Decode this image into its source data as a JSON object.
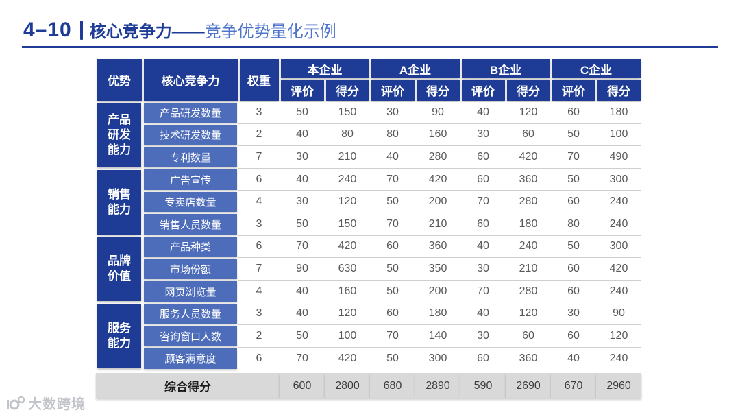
{
  "slide": {
    "number": "4–10",
    "title_main": "核心竞争力——",
    "title_sub": "竞争优势量化示例"
  },
  "watermark": {
    "brand": "大数跨境"
  },
  "colors": {
    "dark_blue": "#1e3c96",
    "mid_blue": "#4d6dba",
    "title_light_blue": "#4f74cc",
    "footer_gray": "#d9d9d9",
    "data_text_gray": "#595959",
    "row_line_gray": "#cfcfcf"
  },
  "chart_data": {
    "type": "table",
    "title": "核心竞争力——竞争优势量化示例",
    "header": {
      "advantage": "优势",
      "core_competitiveness": "核心竞争力",
      "weight": "权重",
      "companies": [
        "本企业",
        "A企业",
        "B企业",
        "C企业"
      ],
      "subheaders": [
        "评价",
        "得分"
      ]
    },
    "value_columns": [
      "本企业 评价",
      "本企业 得分",
      "A企业 评价",
      "A企业 得分",
      "B企业 评价",
      "B企业 得分",
      "C企业 评价",
      "C企业 得分"
    ],
    "groups": [
      {
        "advantage": "产品\n研发\n能力",
        "rows": [
          {
            "label": "产品研发数量",
            "weight": 3,
            "values": [
              50,
              150,
              30,
              90,
              40,
              120,
              60,
              180
            ]
          },
          {
            "label": "技术研发数量",
            "weight": 2,
            "values": [
              40,
              80,
              80,
              160,
              30,
              60,
              50,
              100
            ]
          },
          {
            "label": "专利数量",
            "weight": 7,
            "values": [
              30,
              210,
              40,
              280,
              60,
              420,
              70,
              490
            ]
          }
        ]
      },
      {
        "advantage": "销售\n能力",
        "rows": [
          {
            "label": "广告宣传",
            "weight": 6,
            "values": [
              40,
              240,
              70,
              420,
              60,
              360,
              50,
              300
            ]
          },
          {
            "label": "专卖店数量",
            "weight": 4,
            "values": [
              30,
              120,
              50,
              200,
              70,
              280,
              60,
              240
            ]
          },
          {
            "label": "销售人员数量",
            "weight": 3,
            "values": [
              50,
              150,
              70,
              210,
              60,
              180,
              80,
              240
            ]
          }
        ]
      },
      {
        "advantage": "品牌\n价值",
        "rows": [
          {
            "label": "产品种类",
            "weight": 6,
            "values": [
              70,
              420,
              60,
              360,
              40,
              240,
              50,
              300
            ]
          },
          {
            "label": "市场份额",
            "weight": 7,
            "values": [
              90,
              630,
              50,
              350,
              30,
              210,
              60,
              420
            ]
          },
          {
            "label": "网页浏览量",
            "weight": 4,
            "values": [
              40,
              160,
              50,
              200,
              70,
              280,
              60,
              240
            ]
          }
        ]
      },
      {
        "advantage": "服务\n能力",
        "rows": [
          {
            "label": "服务人员数量",
            "weight": 3,
            "values": [
              40,
              120,
              60,
              180,
              40,
              120,
              30,
              90
            ]
          },
          {
            "label": "咨询窗口人数",
            "weight": 2,
            "values": [
              50,
              100,
              70,
              140,
              30,
              60,
              60,
              120
            ]
          },
          {
            "label": "顾客满意度",
            "weight": 6,
            "values": [
              70,
              420,
              50,
              300,
              60,
              360,
              40,
              240
            ]
          }
        ]
      }
    ],
    "footer": {
      "label": "综合得分",
      "values": [
        600,
        2800,
        680,
        2890,
        590,
        2690,
        670,
        2960
      ]
    }
  }
}
